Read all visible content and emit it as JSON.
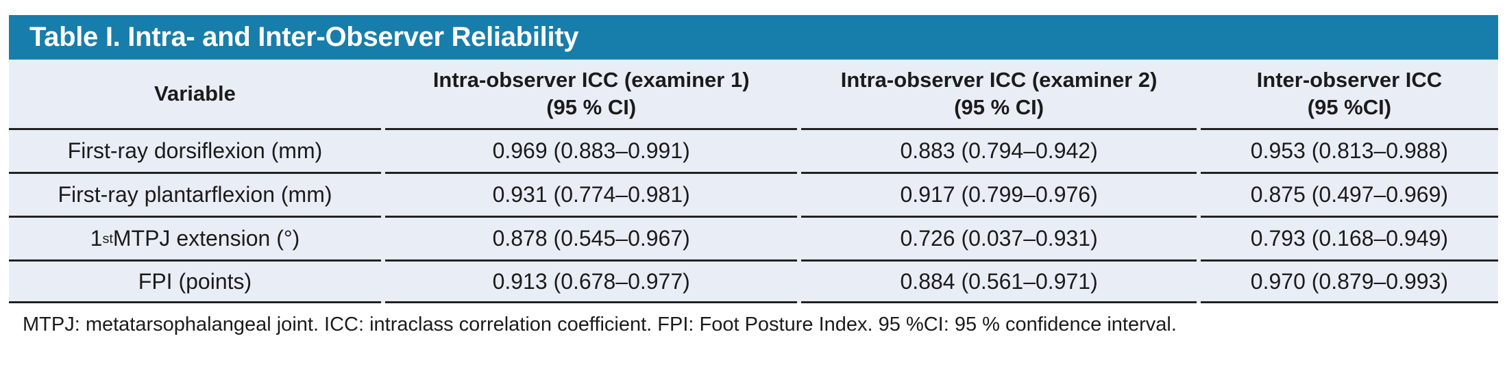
{
  "table": {
    "title": "Table I. Intra- and Inter-Observer Reliability",
    "colors": {
      "header_bg": "#177EAC",
      "body_bg": "#E9EDF6",
      "rule": "#222222",
      "title_text": "#FFFFFF",
      "body_text": "#1B1B1B"
    },
    "columns": [
      {
        "line1": "Variable",
        "line2": ""
      },
      {
        "line1": "Intra-observer ICC (examiner 1)",
        "line2": "(95 % CI)"
      },
      {
        "line1": "Intra-observer ICC (examiner 2)",
        "line2": "(95 % CI)"
      },
      {
        "line1": "Inter-observer ICC",
        "line2": "(95 %CI)"
      }
    ],
    "rows": [
      {
        "variable": "First-ray dorsiflexion (mm)",
        "examiner1": "0.969 (0.883–0.991)",
        "examiner2": "0.883 (0.794–0.942)",
        "inter": "0.953 (0.813–0.988)"
      },
      {
        "variable": "First-ray plantarflexion (mm)",
        "examiner1": "0.931 (0.774–0.981)",
        "examiner2": "0.917 (0.799–0.976)",
        "inter": "0.875 (0.497–0.969)"
      },
      {
        "variable_rich": "1<sup>st</sup> MTPJ extension (°)",
        "examiner1": "0.878 (0.545–0.967)",
        "examiner2": "0.726 (0.037–0.931)",
        "inter": "0.793 (0.168–0.949)"
      },
      {
        "variable": "FPI (points)",
        "examiner1": "0.913 (0.678–0.977)",
        "examiner2": "0.884 (0.561–0.971)",
        "inter": "0.970 (0.879–0.993)"
      }
    ],
    "footnote": "MTPJ: metatarsophalangeal joint. ICC: intraclass correlation coefficient. FPI: Foot Posture Index. 95 %CI: 95 % confidence interval."
  },
  "chart_data": {
    "type": "table",
    "title": "Table I. Intra- and Inter-Observer Reliability",
    "columns": [
      "Variable",
      "Intra-observer ICC (examiner 1) (95 % CI)",
      "Intra-observer ICC (examiner 2) (95 % CI)",
      "Inter-observer ICC (95 %CI)"
    ],
    "rows": [
      [
        "First-ray dorsiflexion (mm)",
        "0.969 (0.883–0.991)",
        "0.883 (0.794–0.942)",
        "0.953 (0.813–0.988)"
      ],
      [
        "First-ray plantarflexion (mm)",
        "0.931 (0.774–0.981)",
        "0.917 (0.799–0.976)",
        "0.875 (0.497–0.969)"
      ],
      [
        "1st MTPJ extension (°)",
        "0.878 (0.545–0.967)",
        "0.726 (0.037–0.931)",
        "0.793 (0.168–0.949)"
      ],
      [
        "FPI (points)",
        "0.913 (0.678–0.977)",
        "0.884 (0.561–0.971)",
        "0.970 (0.879–0.993)"
      ]
    ],
    "footnote": "MTPJ: metatarsophalangeal joint. ICC: intraclass correlation coefficient. FPI: Foot Posture Index. 95 %CI: 95 % confidence interval."
  }
}
